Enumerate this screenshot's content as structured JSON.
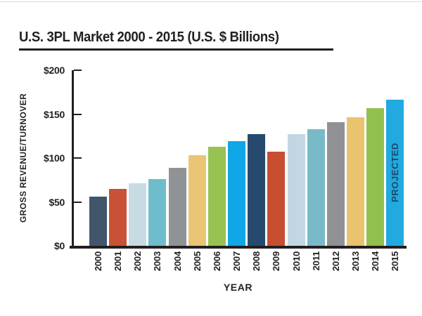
{
  "chart_data": {
    "type": "bar",
    "title": "U.S. 3PL Market 2000 - 2015 (U.S. $ Billions)",
    "xlabel": "YEAR",
    "ylabel": "GROSS REVENUE/TURNOVER",
    "categories": [
      "2000",
      "2001",
      "2002",
      "2003",
      "2004",
      "2005",
      "2006",
      "2007",
      "2008",
      "2009",
      "2010",
      "2011",
      "2012",
      "2013",
      "2014",
      "2015"
    ],
    "values": [
      56,
      65,
      71,
      76,
      89,
      103,
      113,
      119,
      127,
      107,
      127,
      133,
      141,
      146,
      157,
      166
    ],
    "bar_colors": [
      "#41566a",
      "#c85136",
      "#c7dbe5",
      "#6fbdcc",
      "#909396",
      "#eac573",
      "#97c353",
      "#0fa7e5",
      "#27496d",
      "#c84e31",
      "#c2d7e3",
      "#79bac8",
      "#8f9194",
      "#e9c36e",
      "#92c04c",
      "#22a9e0"
    ],
    "ylim": [
      0,
      200
    ],
    "y_ticks": [
      {
        "label": "$200",
        "value": 200
      },
      {
        "label": "$150",
        "value": 150
      },
      {
        "label": "$100",
        "value": 100
      },
      {
        "label": "$50",
        "value": 50
      },
      {
        "label": "$0",
        "value": 0
      }
    ],
    "grid": false,
    "legend": null,
    "projected": {
      "year": "2015",
      "label": "PROJECTED",
      "color": "#1d4a6b"
    }
  },
  "colors": {
    "text": "#231f20",
    "axis": "#231f20",
    "top_border": "#dadada",
    "background": "#ffffff"
  }
}
